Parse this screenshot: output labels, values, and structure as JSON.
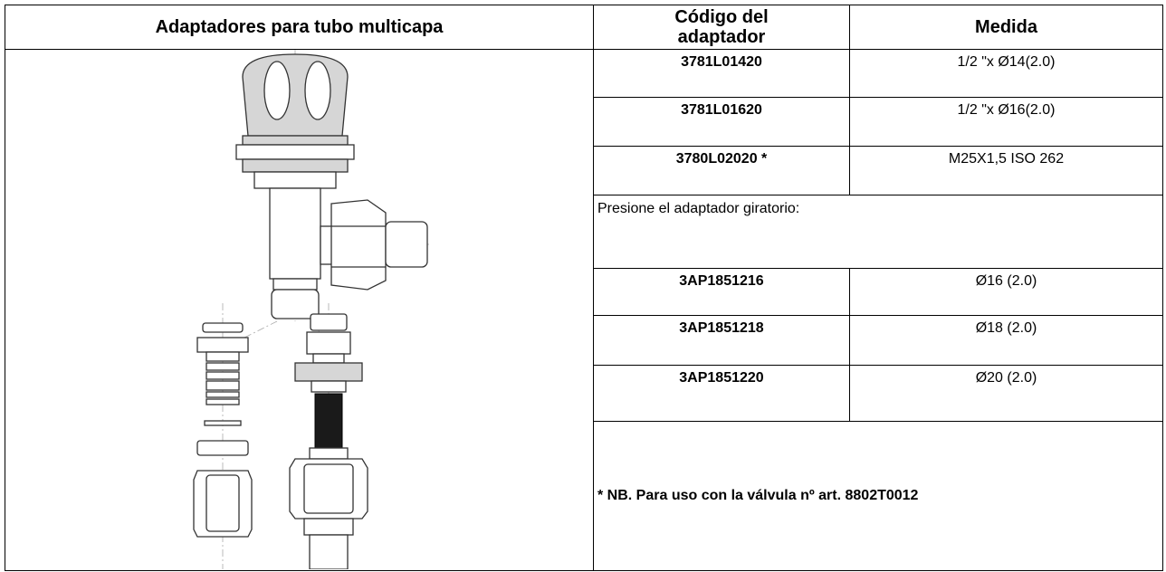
{
  "table": {
    "headers": [
      "Adaptadores para tubo multicapa",
      "Código del adaptador",
      "Medida"
    ],
    "rows": [
      [
        "3781L01420",
        "1/2 \"x Ø14(2.0)"
      ],
      [
        "3781L01620",
        "1/2 \"x Ø16(2.0)"
      ],
      [
        "3780L02020 *",
        "M25X1,5 ISO 262"
      ]
    ],
    "subheading": "Presione el adaptador giratorio:",
    "swivel_rows": [
      [
        "3AP1851216",
        "Ø16 (2.0)"
      ],
      [
        "3AP1851218",
        "Ø18 (2.0)"
      ],
      [
        "3AP1851220",
        "Ø20 (2.0)"
      ]
    ],
    "note": "* NB. Para uso con la válvula nº art. 8802T0012"
  }
}
